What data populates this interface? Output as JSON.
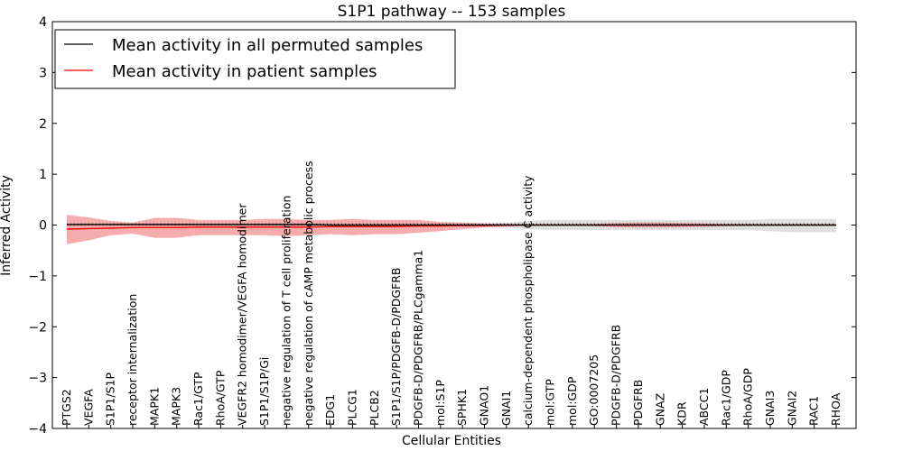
{
  "chart_data": {
    "type": "line",
    "title": "S1P1 pathway -- 153 samples",
    "xlabel": "Cellular Entities",
    "ylabel": "Inferred Activity",
    "ylim": [
      -4,
      4
    ],
    "yticks": [
      4,
      3,
      2,
      1,
      0,
      -1,
      -2,
      -3,
      -4
    ],
    "ytick_labels": [
      "4",
      "3",
      "2",
      "1",
      "0",
      "−1",
      "−2",
      "−3",
      "−4"
    ],
    "legend_position": "top-left",
    "categories": [
      "PTGS2",
      "VEGFA",
      "S1P1/S1P",
      "receptor internalization",
      "MAPK1",
      "MAPK3",
      "Rac1/GTP",
      "RhoA/GTP",
      "VEGFR2 homodimer/VEGFA homodimer",
      "S1P1/S1P/Gi",
      "negative regulation of T cell proliferation",
      "negative regulation of cAMP metabolic process",
      "EDG1",
      "PLCG1",
      "PLCB2",
      "S1P1/S1P/PDGFB-D/PDGFRB",
      "PDGFB-D/PDGFRB/PLCgamma1",
      "mol:S1P",
      "SPHK1",
      "GNAO1",
      "GNAI1",
      "calcium-dependent phospholipase C activity",
      "mol:GTP",
      "mol:GDP",
      "GO:0007205",
      "PDGFB-D/PDGFRB",
      "PDGFRB",
      "GNAZ",
      "KDR",
      "ABCC1",
      "Rac1/GDP",
      "RhoA/GDP",
      "GNAI3",
      "GNAI2",
      "RAC1",
      "RHOA"
    ],
    "series": [
      {
        "name": "Mean activity in all permuted samples",
        "color": "#000000",
        "values": [
          0.01,
          0.01,
          0.01,
          0.01,
          0.01,
          0.01,
          0.01,
          0.01,
          0.01,
          0.01,
          0.01,
          0.01,
          0.0,
          0.0,
          0.0,
          0.0,
          0.0,
          0.0,
          0.0,
          0.0,
          0.0,
          0.0,
          0.0,
          0.0,
          0.0,
          0.0,
          0.0,
          0.0,
          0.0,
          0.0,
          0.0,
          0.0,
          0.0,
          0.0,
          0.0,
          0.0
        ],
        "band_upper": [
          0.04,
          0.04,
          0.04,
          0.04,
          0.04,
          0.04,
          0.04,
          0.04,
          0.04,
          0.04,
          0.04,
          0.04,
          0.03,
          0.03,
          0.03,
          0.03,
          0.03,
          0.03,
          0.03,
          0.03,
          0.05,
          0.08,
          0.1,
          0.1,
          0.1,
          0.1,
          0.1,
          0.1,
          0.1,
          0.1,
          0.1,
          0.1,
          0.12,
          0.12,
          0.12,
          0.12
        ],
        "band_lower": [
          -0.03,
          -0.03,
          -0.03,
          -0.03,
          -0.03,
          -0.03,
          -0.03,
          -0.03,
          -0.03,
          -0.03,
          -0.03,
          -0.03,
          -0.03,
          -0.03,
          -0.03,
          -0.03,
          -0.03,
          -0.03,
          -0.03,
          -0.03,
          -0.05,
          -0.08,
          -0.1,
          -0.1,
          -0.1,
          -0.1,
          -0.1,
          -0.1,
          -0.1,
          -0.1,
          -0.1,
          -0.1,
          -0.12,
          -0.14,
          -0.14,
          -0.14
        ]
      },
      {
        "name": "Mean activity in patient samples",
        "color": "#ff0000",
        "band_color": "#f08080",
        "values": [
          -0.08,
          -0.07,
          -0.06,
          -0.05,
          -0.05,
          -0.05,
          -0.04,
          -0.04,
          -0.04,
          -0.04,
          -0.04,
          -0.04,
          -0.03,
          -0.03,
          -0.03,
          -0.03,
          -0.02,
          -0.02,
          -0.01,
          -0.01,
          0.0,
          0.0,
          0.0,
          0.0,
          0.0,
          0.0,
          0.0,
          0.0,
          0.0,
          0.0,
          0.0,
          0.0,
          0.0,
          0.0,
          0.0,
          0.0
        ],
        "band_upper": [
          0.2,
          0.15,
          0.08,
          0.05,
          0.14,
          0.14,
          0.1,
          0.1,
          0.1,
          0.12,
          0.12,
          0.1,
          0.1,
          0.12,
          0.1,
          0.1,
          0.1,
          0.06,
          0.05,
          0.03,
          0.02,
          0.01,
          0.01,
          0.01,
          0.02,
          0.04,
          0.05,
          0.05,
          0.04,
          0.03,
          0.02,
          0.01,
          0.01,
          0.01,
          0.01,
          0.01
        ],
        "band_lower": [
          -0.38,
          -0.3,
          -0.2,
          -0.17,
          -0.25,
          -0.25,
          -0.2,
          -0.2,
          -0.2,
          -0.2,
          -0.22,
          -0.2,
          -0.18,
          -0.2,
          -0.18,
          -0.18,
          -0.15,
          -0.12,
          -0.08,
          -0.05,
          -0.03,
          -0.01,
          -0.01,
          -0.01,
          -0.02,
          -0.04,
          -0.05,
          -0.05,
          -0.04,
          -0.03,
          -0.02,
          -0.01,
          -0.01,
          -0.01,
          -0.01,
          -0.01
        ]
      }
    ]
  }
}
